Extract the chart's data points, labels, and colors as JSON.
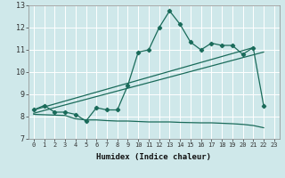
{
  "xlabel": "Humidex (Indice chaleur)",
  "xlim": [
    -0.5,
    23.5
  ],
  "ylim": [
    7,
    13
  ],
  "yticks": [
    7,
    8,
    9,
    10,
    11,
    12,
    13
  ],
  "xticks": [
    0,
    1,
    2,
    3,
    4,
    5,
    6,
    7,
    8,
    9,
    10,
    11,
    12,
    13,
    14,
    15,
    16,
    17,
    18,
    19,
    20,
    21,
    22,
    23
  ],
  "background_color": "#cfe8ea",
  "grid_color": "#b8d8da",
  "line_color": "#1a6b5a",
  "curve_x": [
    0,
    1,
    2,
    3,
    4,
    5,
    6,
    7,
    8,
    9,
    10,
    11,
    12,
    13,
    14,
    15,
    16,
    17,
    18,
    19,
    20,
    21,
    22
  ],
  "curve_y": [
    8.3,
    8.5,
    8.2,
    8.2,
    8.1,
    7.8,
    8.4,
    8.3,
    8.3,
    9.4,
    10.9,
    11.0,
    12.0,
    12.75,
    12.15,
    11.35,
    11.0,
    11.3,
    11.2,
    11.2,
    10.8,
    11.1,
    8.5
  ],
  "line1_x": [
    0,
    21
  ],
  "line1_y": [
    8.3,
    11.1
  ],
  "line2_x": [
    0,
    22
  ],
  "line2_y": [
    8.15,
    10.9
  ],
  "stair_x": [
    0,
    3,
    4,
    5,
    6,
    7,
    8,
    9,
    10,
    11,
    12,
    13,
    14,
    15,
    16,
    17,
    18,
    19,
    20,
    21,
    22
  ],
  "stair_y": [
    8.1,
    8.05,
    7.9,
    7.85,
    7.85,
    7.82,
    7.8,
    7.8,
    7.78,
    7.76,
    7.76,
    7.76,
    7.74,
    7.73,
    7.72,
    7.72,
    7.7,
    7.68,
    7.65,
    7.6,
    7.5
  ]
}
